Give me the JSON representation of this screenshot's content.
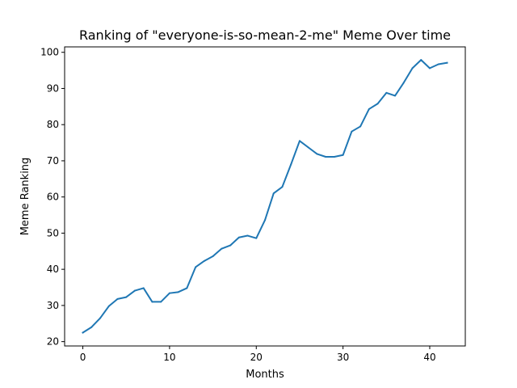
{
  "chart_data": {
    "type": "line",
    "title": "Ranking of \"everyone-is-so-mean-2-me\" Meme Over time",
    "xlabel": "Months",
    "ylabel": "Meme Ranking",
    "xlim": [
      -2.1,
      44.1
    ],
    "ylim": [
      18.8,
      101.5
    ],
    "xticks": [
      0,
      10,
      20,
      30,
      40
    ],
    "yticks": [
      20,
      30,
      40,
      50,
      60,
      70,
      80,
      90,
      100
    ],
    "grid": false,
    "line_color": "#1f77b4",
    "series": [
      {
        "x": [
          0,
          1,
          2,
          3,
          4,
          5,
          6,
          7,
          8,
          9,
          10,
          11,
          12,
          13,
          14,
          15,
          16,
          17,
          18,
          19,
          20,
          21,
          22,
          23,
          24,
          25,
          26,
          27,
          28,
          29,
          30,
          31,
          32,
          33,
          34,
          35,
          36,
          37,
          38,
          39,
          40,
          41,
          42
        ],
        "values": [
          22.5,
          24.0,
          26.5,
          29.8,
          31.8,
          32.3,
          34.1,
          34.8,
          31.0,
          31.0,
          33.4,
          33.7,
          34.8,
          40.6,
          42.3,
          43.6,
          45.7,
          46.6,
          48.8,
          49.3,
          48.6,
          53.6,
          61.0,
          62.8,
          69.0,
          75.5,
          73.7,
          71.9,
          71.1,
          71.1,
          71.6,
          78.1,
          79.5,
          84.3,
          85.8,
          88.8,
          88.0,
          91.6,
          95.6,
          97.9,
          95.6,
          96.7,
          97.1
        ]
      }
    ]
  }
}
